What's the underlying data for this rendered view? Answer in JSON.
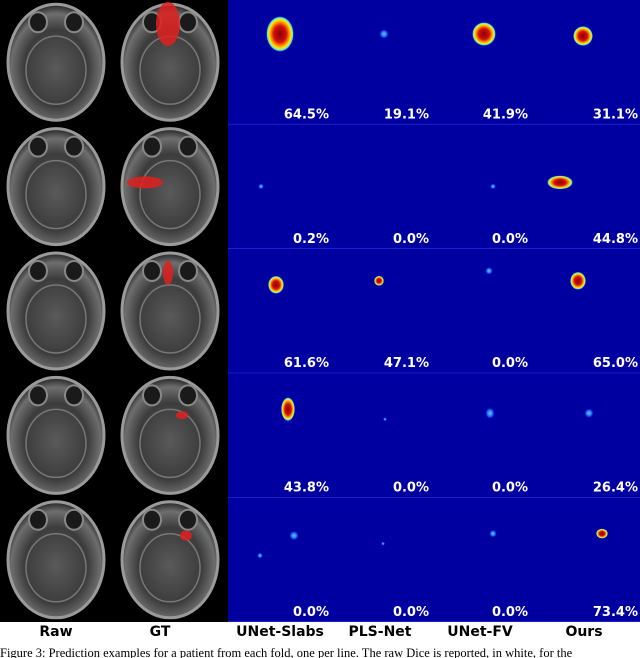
{
  "columns": [
    "Raw",
    "GT",
    "UNet-Slabs",
    "PLS-Net",
    "UNet-FV",
    "Ours"
  ],
  "rows": [
    {
      "dice": [
        "64.5%",
        "19.1%",
        "41.9%",
        "31.1%"
      ]
    },
    {
      "dice": [
        "0.2%",
        "0.0%",
        "0.0%",
        "44.8%"
      ]
    },
    {
      "dice": [
        "61.6%",
        "47.1%",
        "0.0%",
        "65.0%"
      ]
    },
    {
      "dice": [
        "43.8%",
        "0.0%",
        "0.0%",
        "26.4%"
      ]
    },
    {
      "dice": [
        "0.0%",
        "0.0%",
        "0.0%",
        "73.4%"
      ]
    }
  ],
  "caption": "Figure 3: Prediction examples for a patient from each fold, one per line. The raw Dice is reported, in white, for the",
  "colors": {
    "background": "#0000a0",
    "dice_text": "#ffffff",
    "gt_overlay": "#e02020",
    "heat_hot": "#a00000",
    "heat_mid": "#ffdd00",
    "heat_low": "#00b0ff"
  }
}
